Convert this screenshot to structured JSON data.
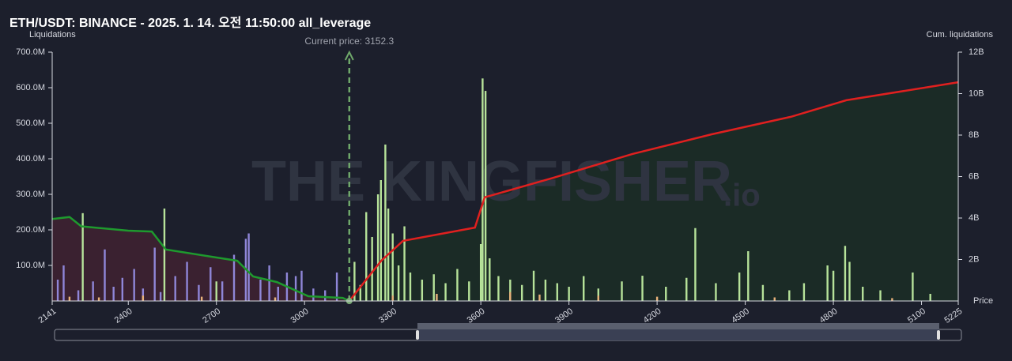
{
  "chart_data": {
    "type": "bar",
    "title": "ETH/USDT: BINANCE - 2025. 1. 14. 오전 11:50:00 all_leverage",
    "ylabel": "Liquidations",
    "y2label": "Cum. liquidations",
    "xlabel": "Price",
    "watermark": "THE KINGFISHER",
    "watermark_suffix": ".io",
    "current_price": {
      "value": 3152.3,
      "label": "Current price: 3152.3"
    },
    "xlim": [
      2141,
      5225
    ],
    "xticks": [
      2141,
      2400,
      2700,
      3000,
      3300,
      3600,
      3900,
      4200,
      4500,
      4800,
      5100,
      5225
    ],
    "ylim": [
      0,
      700
    ],
    "yticks": [
      {
        "value": 100,
        "label": "100.0M"
      },
      {
        "value": 200,
        "label": "200.0M"
      },
      {
        "value": 300,
        "label": "300.0M"
      },
      {
        "value": 400,
        "label": "400.0M"
      },
      {
        "value": 500,
        "label": "500.0M"
      },
      {
        "value": 600,
        "label": "600.0M"
      },
      {
        "value": 700,
        "label": "700.0M"
      }
    ],
    "y2lim": [
      0,
      12
    ],
    "y2ticks": [
      {
        "value": 2,
        "label": "2B"
      },
      {
        "value": 4,
        "label": "4B"
      },
      {
        "value": 6,
        "label": "6B"
      },
      {
        "value": 8,
        "label": "8B"
      },
      {
        "value": 10,
        "label": "10B"
      },
      {
        "value": 12,
        "label": "12B"
      }
    ],
    "series": [
      {
        "color": "#8f86d8",
        "x": [
          2160,
          2180,
          2230,
          2280,
          2320,
          2350,
          2380,
          2420,
          2450,
          2490,
          2510,
          2560,
          2600,
          2640,
          2680,
          2720,
          2760,
          2800,
          2810,
          2850,
          2880,
          2910,
          2940,
          2970,
          2990,
          3030,
          3070,
          3110
        ],
        "values": [
          60,
          100,
          30,
          55,
          145,
          40,
          65,
          90,
          35,
          150,
          25,
          70,
          110,
          45,
          95,
          55,
          130,
          175,
          190,
          60,
          100,
          40,
          80,
          70,
          85,
          35,
          30,
          80
        ]
      },
      {
        "color": "#b7e39a",
        "x": [
          2245,
          2523,
          2700,
          3170,
          3190,
          3210,
          3230,
          3250,
          3260,
          3275,
          3285,
          3300,
          3320,
          3340,
          3360,
          3400,
          3440,
          3480,
          3520,
          3560,
          3600,
          3606,
          3616,
          3630,
          3660,
          3700,
          3740,
          3780,
          3820,
          3860,
          3900,
          3950,
          4000,
          4080,
          4150,
          4230,
          4300,
          4330,
          4400,
          4480,
          4510,
          4560,
          4650,
          4700,
          4780,
          4800,
          4840,
          4855,
          4900,
          4960,
          5070,
          5130
        ],
        "values": [
          247,
          260,
          55,
          110,
          45,
          250,
          180,
          300,
          340,
          440,
          260,
          190,
          100,
          210,
          80,
          60,
          75,
          50,
          90,
          55,
          160,
          626,
          591,
          120,
          70,
          60,
          45,
          85,
          60,
          50,
          40,
          70,
          35,
          55,
          71,
          40,
          65,
          205,
          50,
          80,
          140,
          45,
          30,
          50,
          100,
          85,
          155,
          110,
          40,
          30,
          80,
          20
        ]
      },
      {
        "color": "#e8b27a",
        "x": [
          2200,
          2300,
          2450,
          2650,
          2900,
          3300,
          3450,
          3700,
          3800,
          4000,
          4200,
          4600,
          5000
        ],
        "values": [
          12,
          10,
          15,
          12,
          10,
          15,
          20,
          25,
          18,
          15,
          12,
          10,
          8
        ]
      }
    ],
    "cumulative": [
      {
        "color": "#1e9a2e",
        "fill": "#3a2130",
        "axis": "y2",
        "x": [
          2141,
          2200,
          2240,
          2400,
          2480,
          2528,
          2771,
          2825,
          2906,
          3013,
          3130,
          3152.3
        ],
        "values": [
          3.95,
          4.05,
          3.6,
          3.39,
          3.35,
          2.48,
          1.94,
          1.18,
          0.91,
          0.23,
          0.15,
          0
        ]
      },
      {
        "color": "#e0201f",
        "fill": "#1b2b26",
        "axis": "y2",
        "x": [
          3152.3,
          3261,
          3335,
          3580,
          3613,
          3847,
          4116,
          4386,
          4655,
          4844,
          5225
        ],
        "values": [
          0,
          1.94,
          2.9,
          3.54,
          5.0,
          5.94,
          7.09,
          8.04,
          8.88,
          9.68,
          10.55
        ]
      }
    ]
  }
}
